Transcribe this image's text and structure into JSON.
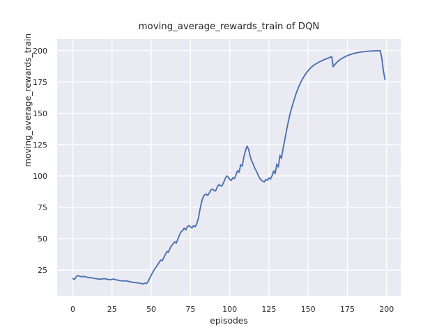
{
  "chart_data": {
    "type": "line",
    "title": "moving_average_rewards_train of DQN",
    "xlabel": "episodes",
    "ylabel": "moving_average_rewards_train",
    "x_ticks": [
      0,
      25,
      50,
      75,
      100,
      125,
      150,
      175,
      200
    ],
    "y_ticks": [
      25,
      50,
      75,
      100,
      125,
      150,
      175,
      200
    ],
    "xlim": [
      -10.0,
      209.0
    ],
    "ylim": [
      4.5,
      209.3
    ],
    "grid": true,
    "legend": "none",
    "colors": {
      "line": "#4c72b0",
      "plot_background": "#eaeaf2",
      "grid": "#ffffff",
      "figure_background": "#ffffff",
      "text": "#262626"
    },
    "series": [
      {
        "name": "moving_average_rewards_train",
        "x": [
          0,
          1,
          2,
          3,
          4,
          5,
          6,
          7,
          8,
          9,
          10,
          11,
          12,
          13,
          14,
          15,
          16,
          17,
          18,
          19,
          20,
          21,
          22,
          23,
          24,
          25,
          26,
          27,
          28,
          29,
          30,
          31,
          32,
          33,
          34,
          35,
          36,
          37,
          38,
          39,
          40,
          41,
          42,
          43,
          44,
          45,
          46,
          47,
          48,
          49,
          50,
          51,
          52,
          53,
          54,
          55,
          56,
          57,
          58,
          59,
          60,
          61,
          62,
          63,
          64,
          65,
          66,
          67,
          68,
          69,
          70,
          71,
          72,
          73,
          74,
          75,
          76,
          77,
          78,
          79,
          80,
          81,
          82,
          83,
          84,
          85,
          86,
          87,
          88,
          89,
          90,
          91,
          92,
          93,
          94,
          95,
          96,
          97,
          98,
          99,
          100,
          101,
          102,
          103,
          104,
          105,
          106,
          107,
          108,
          109,
          110,
          111,
          112,
          113,
          114,
          115,
          116,
          117,
          118,
          119,
          120,
          121,
          122,
          123,
          124,
          125,
          126,
          127,
          128,
          129,
          130,
          131,
          132,
          133,
          134,
          135,
          136,
          137,
          138,
          139,
          140,
          141,
          142,
          143,
          144,
          145,
          146,
          147,
          148,
          149,
          150,
          151,
          152,
          153,
          154,
          155,
          156,
          157,
          158,
          159,
          160,
          161,
          162,
          163,
          164,
          165,
          166,
          167,
          168,
          169,
          170,
          171,
          172,
          173,
          174,
          175,
          176,
          177,
          178,
          179,
          180,
          181,
          182,
          183,
          184,
          185,
          186,
          187,
          188,
          189,
          190,
          191,
          192,
          193,
          194,
          195,
          196,
          197,
          198,
          199
        ],
        "y": [
          18.2,
          17.4,
          19.3,
          20.6,
          20.2,
          19.8,
          19.6,
          19.9,
          19.7,
          19.2,
          19.0,
          18.9,
          18.8,
          18.5,
          18.3,
          18.1,
          17.9,
          17.7,
          17.7,
          17.9,
          18.2,
          17.9,
          17.6,
          17.4,
          17.3,
          17.6,
          17.8,
          17.4,
          17.1,
          16.8,
          16.6,
          16.4,
          16.2,
          16.3,
          16.4,
          16.1,
          15.8,
          15.5,
          15.3,
          15.1,
          15.0,
          14.8,
          14.6,
          14.4,
          14.2,
          13.9,
          14.6,
          14.2,
          16.0,
          18.5,
          21.0,
          23.3,
          25.5,
          27.3,
          29.0,
          31.0,
          33.0,
          32.4,
          35.0,
          37.5,
          39.8,
          39.2,
          42.5,
          44.5,
          46.0,
          47.5,
          46.5,
          50.0,
          53.0,
          55.5,
          56.5,
          58.5,
          57.0,
          59.5,
          60.5,
          59.5,
          58.5,
          60.5,
          59.5,
          62.0,
          66.0,
          73.0,
          79.0,
          83.0,
          85.0,
          85.5,
          84.5,
          86.5,
          89.0,
          89.5,
          88.5,
          88.0,
          91.0,
          93.0,
          92.5,
          92.0,
          94.5,
          97.5,
          100.0,
          99.3,
          97.2,
          96.5,
          98.6,
          97.9,
          101.0,
          104.2,
          103.0,
          109.0,
          107.8,
          115.0,
          120.0,
          123.8,
          121.5,
          116.0,
          112.0,
          109.5,
          106.0,
          104.0,
          101.0,
          98.5,
          97.0,
          95.8,
          95.2,
          97.3,
          96.6,
          98.4,
          97.6,
          100.2,
          104.0,
          101.9,
          109.5,
          107.2,
          116.5,
          114.0,
          121.8,
          128.0,
          135.0,
          141.2,
          147.0,
          152.0,
          156.5,
          160.5,
          164.5,
          168.0,
          171.2,
          174.0,
          176.5,
          178.7,
          180.6,
          182.4,
          184.0,
          185.5,
          186.7,
          187.8,
          188.7,
          189.5,
          190.2,
          190.9,
          191.5,
          192.1,
          192.7,
          193.2,
          193.7,
          194.2,
          194.7,
          195.2,
          187.2,
          188.9,
          190.3,
          191.5,
          192.5,
          193.4,
          194.1,
          194.8,
          195.4,
          196.0,
          196.5,
          196.9,
          197.3,
          197.7,
          198.0,
          198.3,
          198.5,
          198.7,
          198.9,
          199.1,
          199.25,
          199.4,
          199.5,
          199.6,
          199.7,
          199.75,
          199.8,
          199.85,
          199.9,
          199.92,
          199.95,
          193.5,
          183.5,
          177.0
        ]
      }
    ]
  }
}
